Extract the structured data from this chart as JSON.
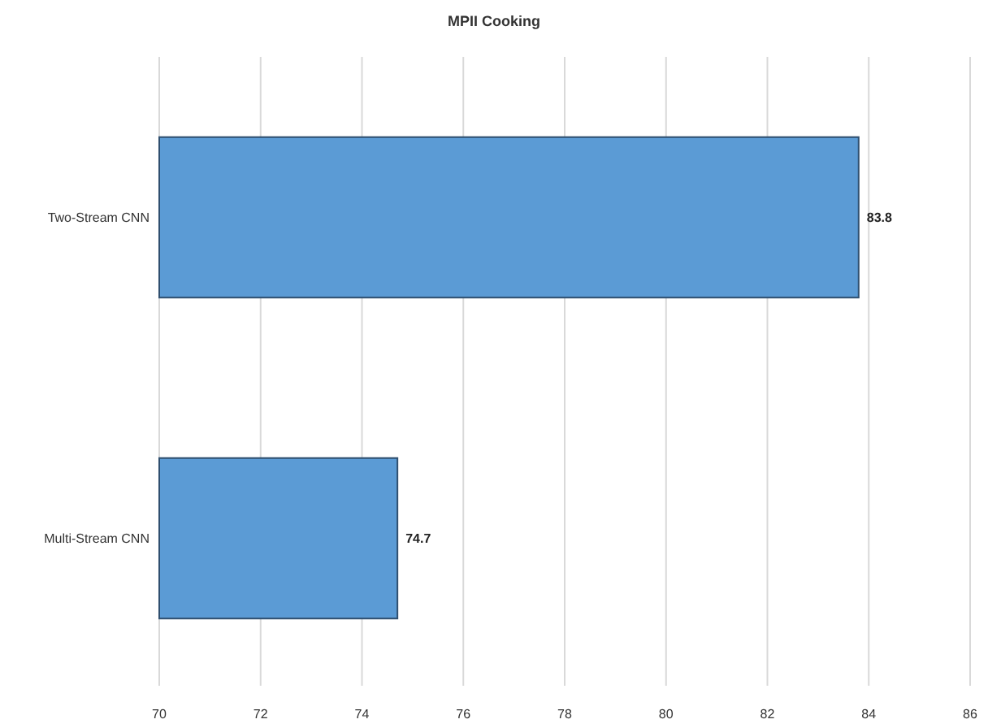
{
  "chart_data": {
    "type": "bar",
    "orientation": "horizontal",
    "title": "MPII Cooking",
    "categories": [
      "Two-Stream CNN",
      "Multi-Stream CNN"
    ],
    "values": [
      83.8,
      74.7
    ],
    "color": "#5b9bd5",
    "xlim": [
      70,
      86
    ],
    "xticks": [
      70,
      72,
      74,
      76,
      78,
      80,
      82,
      84,
      86
    ],
    "grid": "x",
    "data_labels": true
  }
}
